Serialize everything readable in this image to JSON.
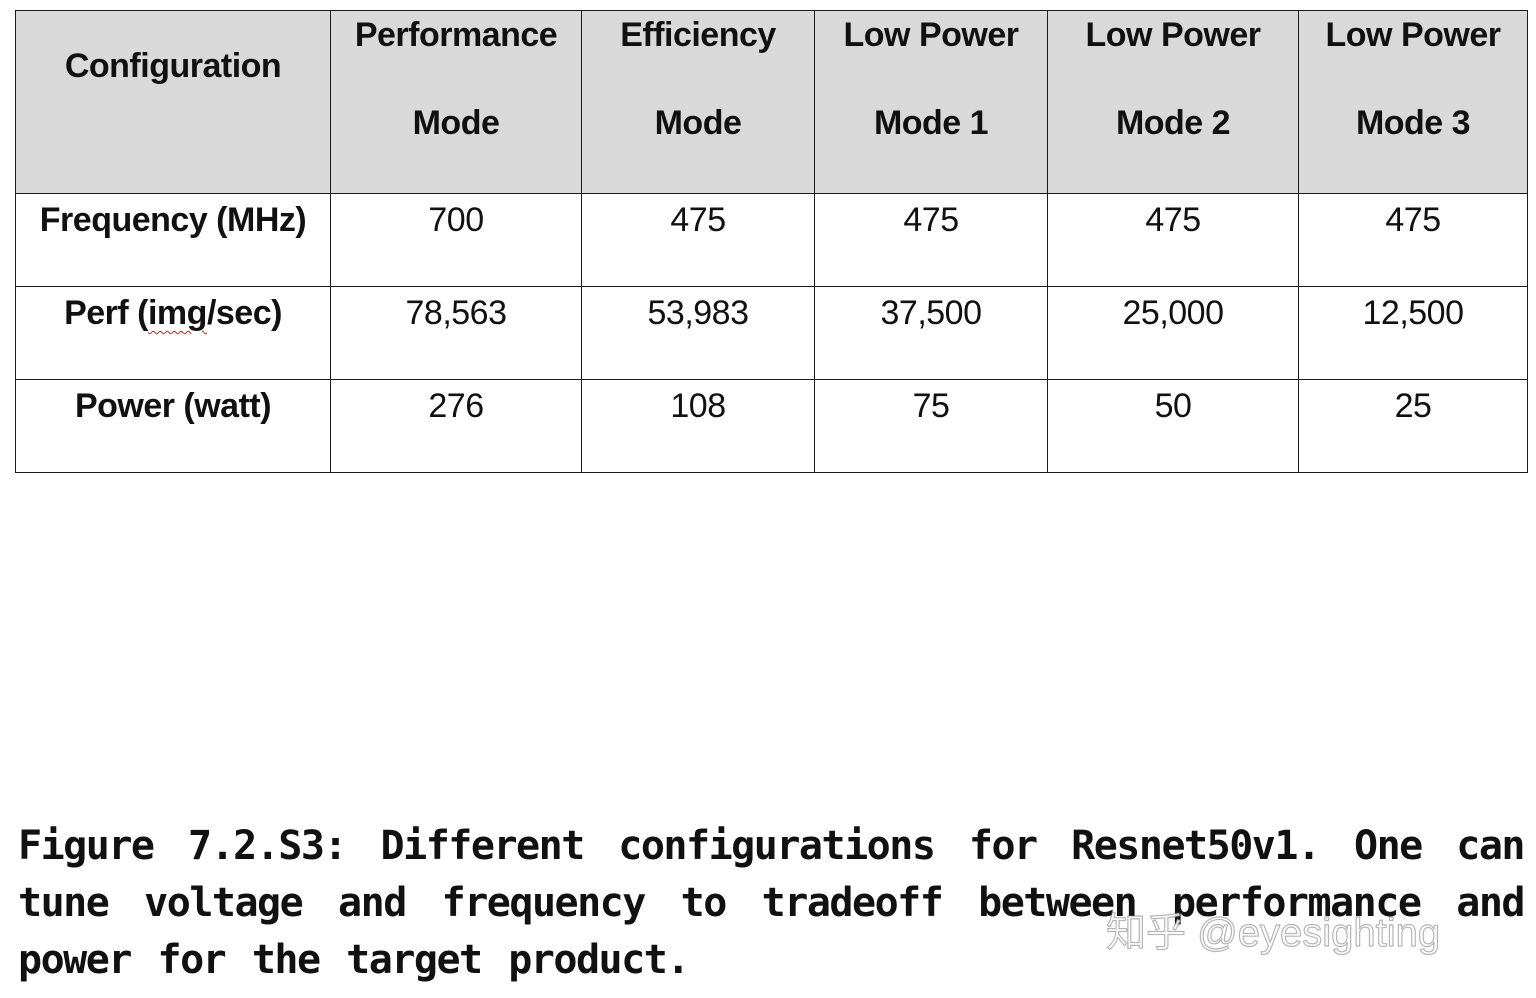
{
  "table": {
    "header": {
      "configuration": "Configuration",
      "columns": [
        {
          "line1": "Performance",
          "line2": "Mode"
        },
        {
          "line1": "Efficiency",
          "line2": "Mode"
        },
        {
          "line1": "Low Power",
          "line2": "Mode 1"
        },
        {
          "line1": "Low Power",
          "line2": "Mode 2"
        },
        {
          "line1": "Low Power",
          "line2": "Mode 3"
        }
      ]
    },
    "rows": [
      {
        "label": "Frequency (MHz)",
        "values": [
          "700",
          "475",
          "475",
          "475",
          "475"
        ]
      },
      {
        "label_pre": "Perf (",
        "label_squiggle": "img",
        "label_post": "/sec)",
        "values": [
          "78,563",
          "53,983",
          "37,500",
          "25,000",
          "12,500"
        ]
      },
      {
        "label": "Power (watt)",
        "values": [
          "276",
          "108",
          "75",
          "50",
          "25"
        ]
      }
    ],
    "colors": {
      "header_background": "#d9d9d9",
      "border": "#1a1a1a",
      "spellcheck_underline": "#cc2222"
    }
  },
  "caption": "Figure 7.2.S3: Different configurations for Resnet50v1. One can tune voltage and frequency to tradeoff between performance and power for the target product.",
  "watermark": "知乎 @eyesighting"
}
